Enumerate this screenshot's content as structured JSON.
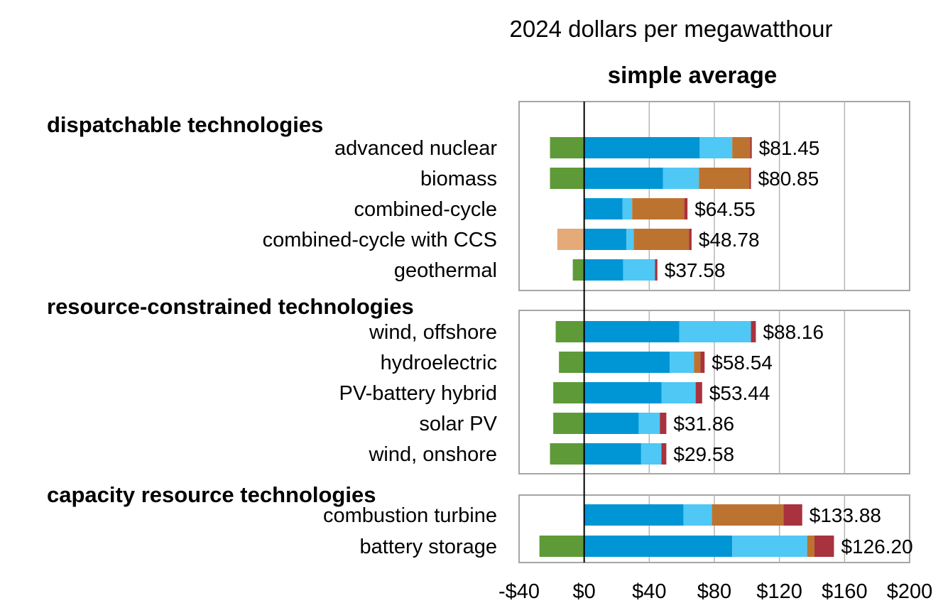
{
  "chart_data": {
    "type": "bar",
    "orientation": "horizontal",
    "stacked": true,
    "unit_title": "2024 dollars per megawatthour",
    "subtitle": "simple average",
    "x_ticks": [
      "-$40",
      "$0",
      "$40",
      "$80",
      "$120",
      "$160",
      "$200"
    ],
    "xlim": [
      -40,
      200
    ],
    "grid": true,
    "legend": "none",
    "segment_colors": [
      "#5e9a38",
      "#e4aa78",
      "#0096d6",
      "#4fc8f5",
      "#bd7330",
      "#a8323d"
    ],
    "groups": [
      {
        "label": "dispatchable technologies",
        "rows": [
          {
            "label": "advanced nuclear",
            "total_label": "$81.45",
            "negative": [
              {
                "value": -21,
                "color": "#5e9a38"
              }
            ],
            "positive": [
              {
                "value": 71,
                "color": "#0096d6"
              },
              {
                "value": 20,
                "color": "#4fc8f5"
              },
              {
                "value": 11,
                "color": "#bd7330"
              },
              {
                "value": 1,
                "color": "#a8323d"
              }
            ]
          },
          {
            "label": "biomass",
            "total_label": "$80.85",
            "negative": [
              {
                "value": -21,
                "color": "#5e9a38"
              }
            ],
            "positive": [
              {
                "value": 48.5,
                "color": "#0096d6"
              },
              {
                "value": 22,
                "color": "#4fc8f5"
              },
              {
                "value": 31,
                "color": "#bd7330"
              },
              {
                "value": 1,
                "color": "#a8323d"
              }
            ]
          },
          {
            "label": "combined-cycle",
            "total_label": "$64.55",
            "negative": [],
            "positive": [
              {
                "value": 23.5,
                "color": "#0096d6"
              },
              {
                "value": 6,
                "color": "#4fc8f5"
              },
              {
                "value": 32,
                "color": "#bd7330"
              },
              {
                "value": 2,
                "color": "#a8323d"
              }
            ]
          },
          {
            "label": "combined-cycle with CCS",
            "total_label": "$48.78",
            "negative": [
              {
                "value": -16.5,
                "color": "#e4aa78"
              }
            ],
            "positive": [
              {
                "value": 26,
                "color": "#0096d6"
              },
              {
                "value": 4.5,
                "color": "#4fc8f5"
              },
              {
                "value": 34,
                "color": "#bd7330"
              },
              {
                "value": 1.5,
                "color": "#a8323d"
              }
            ]
          },
          {
            "label": "geothermal",
            "total_label": "$37.58",
            "negative": [
              {
                "value": -7,
                "color": "#5e9a38"
              }
            ],
            "positive": [
              {
                "value": 24,
                "color": "#0096d6"
              },
              {
                "value": 19.5,
                "color": "#4fc8f5"
              },
              {
                "value": 1.5,
                "color": "#a8323d"
              }
            ]
          }
        ]
      },
      {
        "label": "resource-constrained technologies",
        "rows": [
          {
            "label": "wind, offshore",
            "total_label": "$88.16",
            "negative": [
              {
                "value": -17.5,
                "color": "#5e9a38"
              }
            ],
            "positive": [
              {
                "value": 58.5,
                "color": "#0096d6"
              },
              {
                "value": 44,
                "color": "#4fc8f5"
              },
              {
                "value": 3,
                "color": "#a8323d"
              }
            ]
          },
          {
            "label": "hydroelectric",
            "total_label": "$58.54",
            "negative": [
              {
                "value": -15.5,
                "color": "#5e9a38"
              }
            ],
            "positive": [
              {
                "value": 52.5,
                "color": "#0096d6"
              },
              {
                "value": 15,
                "color": "#4fc8f5"
              },
              {
                "value": 4,
                "color": "#bd7330"
              },
              {
                "value": 2.5,
                "color": "#a8323d"
              }
            ]
          },
          {
            "label": "PV-battery hybrid",
            "total_label": "$53.44",
            "negative": [
              {
                "value": -19,
                "color": "#5e9a38"
              }
            ],
            "positive": [
              {
                "value": 47.5,
                "color": "#0096d6"
              },
              {
                "value": 21,
                "color": "#4fc8f5"
              },
              {
                "value": 4,
                "color": "#a8323d"
              }
            ]
          },
          {
            "label": "solar PV",
            "total_label": "$31.86",
            "negative": [
              {
                "value": -19,
                "color": "#5e9a38"
              }
            ],
            "positive": [
              {
                "value": 33.5,
                "color": "#0096d6"
              },
              {
                "value": 13,
                "color": "#4fc8f5"
              },
              {
                "value": 4,
                "color": "#a8323d"
              }
            ]
          },
          {
            "label": "wind, onshore",
            "total_label": "$29.58",
            "negative": [
              {
                "value": -21,
                "color": "#5e9a38"
              }
            ],
            "positive": [
              {
                "value": 35,
                "color": "#0096d6"
              },
              {
                "value": 12.5,
                "color": "#4fc8f5"
              },
              {
                "value": 3,
                "color": "#a8323d"
              }
            ]
          }
        ]
      },
      {
        "label": "capacity resource technologies",
        "rows": [
          {
            "label": "combustion turbine",
            "total_label": "$133.88",
            "negative": [],
            "positive": [
              {
                "value": 61,
                "color": "#0096d6"
              },
              {
                "value": 17.5,
                "color": "#4fc8f5"
              },
              {
                "value": 44,
                "color": "#bd7330"
              },
              {
                "value": 11.5,
                "color": "#a8323d"
              }
            ]
          },
          {
            "label": "battery storage",
            "total_label": "$126.20",
            "negative": [
              {
                "value": -27.5,
                "color": "#5e9a38"
              }
            ],
            "positive": [
              {
                "value": 91,
                "color": "#0096d6"
              },
              {
                "value": 46,
                "color": "#4fc8f5"
              },
              {
                "value": 4.5,
                "color": "#bd7330"
              },
              {
                "value": 12,
                "color": "#a8323d"
              }
            ]
          }
        ]
      }
    ]
  }
}
